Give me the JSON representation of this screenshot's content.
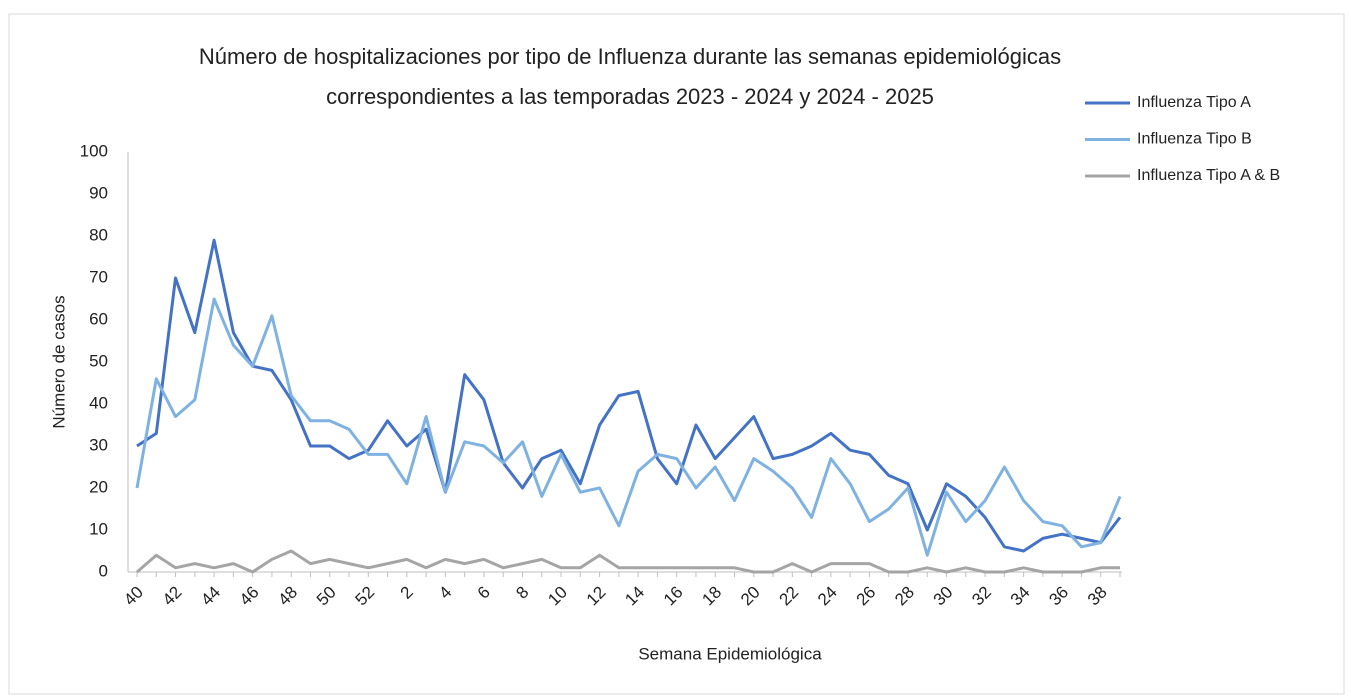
{
  "chart_data": {
    "type": "line",
    "title": [
      "Número de hospitalizaciones por tipo de Influenza durante las semanas epidemiológicas",
      "correspondientes a las temporadas 2023 - 2024 y 2024 - 2025"
    ],
    "x_label": "Semana Epidemiológica",
    "y_label": "Número de casos",
    "categories": [
      "40",
      null,
      "42",
      null,
      "44",
      null,
      "46",
      null,
      "48",
      null,
      "50",
      null,
      "52",
      null,
      "2",
      null,
      "4",
      null,
      "6",
      null,
      "8",
      null,
      "10",
      null,
      "12",
      null,
      "14",
      null,
      "16",
      null,
      "18",
      null,
      "20",
      null,
      "22",
      null,
      "24",
      null,
      "26",
      null,
      "28",
      null,
      "30",
      null,
      "32",
      null,
      "34",
      null,
      "36",
      null,
      "38",
      null
    ],
    "series": [
      {
        "name": "Influenza Tipo A",
        "color": "#4472c4",
        "values": [
          30,
          33,
          70,
          57,
          79,
          57,
          49,
          48,
          41,
          30,
          30,
          27,
          29,
          36,
          30,
          34,
          19,
          47,
          41,
          26,
          20,
          27,
          29,
          21,
          35,
          42,
          43,
          27,
          21,
          35,
          27,
          32,
          37,
          27,
          28,
          30,
          33,
          29,
          28,
          23,
          21,
          10,
          21,
          18,
          13,
          6,
          5,
          8,
          9,
          8,
          7,
          13
        ]
      },
      {
        "name": "Influenza Tipo B",
        "color": "#7fb2e0",
        "values": [
          20,
          46,
          37,
          41,
          65,
          54,
          49,
          61,
          42,
          36,
          36,
          34,
          28,
          28,
          21,
          37,
          19,
          31,
          30,
          26,
          31,
          18,
          28,
          19,
          20,
          11,
          24,
          28,
          27,
          20,
          25,
          17,
          27,
          24,
          20,
          13,
          27,
          21,
          12,
          15,
          20,
          4,
          19,
          12,
          17,
          25,
          17,
          12,
          11,
          6,
          7,
          18
        ]
      },
      {
        "name": "Influenza Tipo A & B",
        "color": "#a5a5a5",
        "values": [
          0,
          4,
          1,
          2,
          1,
          2,
          0,
          3,
          5,
          2,
          3,
          2,
          1,
          2,
          3,
          1,
          3,
          2,
          3,
          1,
          2,
          3,
          1,
          1,
          4,
          1,
          1,
          1,
          1,
          1,
          1,
          1,
          0,
          0,
          2,
          0,
          2,
          2,
          2,
          0,
          0,
          1,
          0,
          1,
          0,
          0,
          1,
          0,
          0,
          0,
          1,
          1
        ]
      }
    ],
    "ylim": [
      0,
      100
    ],
    "yticks": [
      0,
      10,
      20,
      30,
      40,
      50,
      60,
      70,
      80,
      90,
      100
    ],
    "grid": false,
    "legend": "top-right"
  }
}
